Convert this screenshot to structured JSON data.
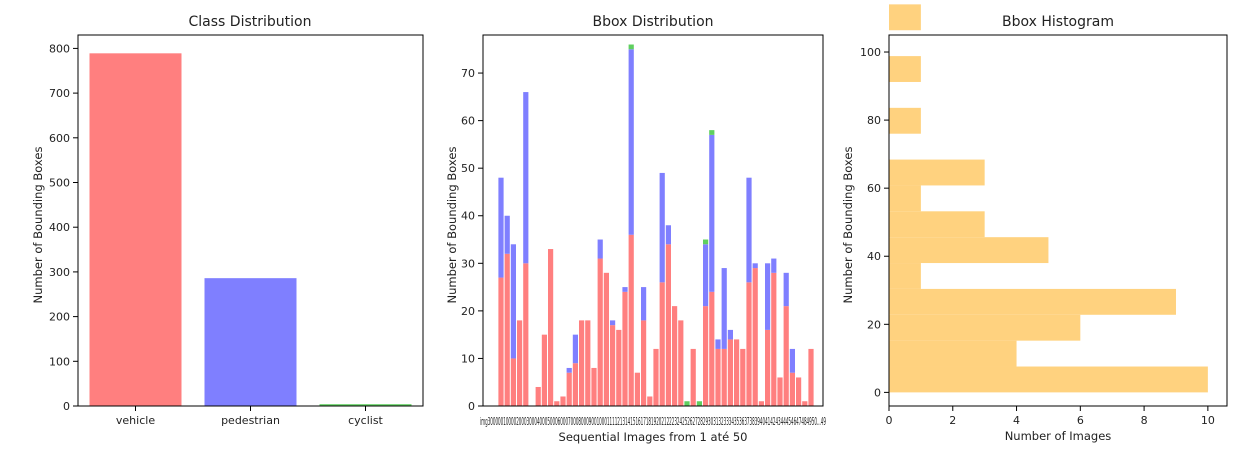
{
  "chart_data": [
    {
      "type": "bar",
      "title": "Class Distribution",
      "xlabel": "",
      "ylabel": "Number of Bounding Boxes",
      "categories": [
        "vehicle",
        "pedestrian",
        "cyclist"
      ],
      "values": [
        789,
        286,
        4
      ],
      "colors": [
        "#ff7f7f",
        "#7f7fff",
        "#5fcf5f"
      ],
      "ylim": [
        0,
        830
      ],
      "yticks": [
        "0",
        "100",
        "200",
        "300",
        "400",
        "500",
        "600",
        "700",
        "800"
      ],
      "grid": false
    },
    {
      "type": "bar",
      "stacked": true,
      "title": "Bbox Distribution",
      "xlabel": "Sequential Images from 1 até 50",
      "ylabel": "Number of Bounding Boxes",
      "ylim": [
        0,
        78
      ],
      "yticks": [
        "0",
        "10",
        "20",
        "30",
        "40",
        "50",
        "60",
        "70"
      ],
      "xtick_text": "img3000001000020003000400050006000700080009001000111121314151617181920212223242526272829303132333435363738394041424344454647484950...49",
      "colors": {
        "vehicle": "#ff7f7f",
        "pedestrian": "#7f7fff",
        "cyclist": "#5fcf5f"
      },
      "series": [
        {
          "values": [
            27,
            32,
            10,
            18,
            30,
            0,
            4,
            15,
            33,
            1,
            2,
            7,
            9,
            18,
            18,
            8,
            31,
            28,
            17,
            16,
            24,
            36,
            7,
            18,
            2,
            12,
            26,
            34,
            21,
            18,
            0,
            12,
            0,
            21,
            24,
            12,
            12,
            14,
            14,
            12,
            26,
            29,
            1,
            16,
            28,
            6,
            21,
            7,
            6,
            1,
            12
          ]
        },
        {
          "values": [
            21,
            8,
            24,
            0,
            36,
            0,
            0,
            0,
            0,
            0,
            0,
            1,
            6,
            0,
            0,
            0,
            4,
            0,
            1,
            0,
            1,
            39,
            0,
            7,
            0,
            0,
            23,
            4,
            0,
            0,
            0,
            0,
            0,
            13,
            33,
            2,
            17,
            2,
            0,
            0,
            22,
            1,
            0,
            14,
            3,
            0,
            7,
            5,
            0,
            0,
            0
          ]
        },
        {
          "values": [
            0,
            0,
            0,
            0,
            0,
            0,
            0,
            0,
            0,
            0,
            0,
            0,
            0,
            0,
            0,
            0,
            0,
            0,
            0,
            0,
            0,
            1,
            0,
            0,
            0,
            0,
            0,
            0,
            0,
            0,
            1,
            0,
            1,
            1,
            1,
            0,
            0,
            0,
            0,
            0,
            0,
            0,
            0,
            0,
            0,
            0,
            0,
            0,
            0,
            0,
            0
          ]
        }
      ],
      "grid": false
    },
    {
      "type": "bar",
      "orientation": "horizontal",
      "title": "Bbox Histogram",
      "xlabel": "Number of Images",
      "ylabel": "Number of Bounding Boxes",
      "xlim": [
        0,
        10.6
      ],
      "ylim": [
        -4,
        105
      ],
      "xticks": [
        "0",
        "2",
        "4",
        "6",
        "8",
        "10"
      ],
      "yticks": [
        "0",
        "20",
        "40",
        "60",
        "80",
        "100"
      ],
      "bins": [
        {
          "from": 0,
          "to": 7.6,
          "count": 10
        },
        {
          "from": 7.6,
          "to": 15.2,
          "count": 4
        },
        {
          "from": 15.2,
          "to": 22.8,
          "count": 6
        },
        {
          "from": 22.8,
          "to": 30.4,
          "count": 9
        },
        {
          "from": 30.4,
          "to": 38.0,
          "count": 1
        },
        {
          "from": 38.0,
          "to": 45.6,
          "count": 5
        },
        {
          "from": 45.6,
          "to": 53.2,
          "count": 3
        },
        {
          "from": 53.2,
          "to": 60.8,
          "count": 1
        },
        {
          "from": 60.8,
          "to": 68.4,
          "count": 3
        },
        {
          "from": 68.4,
          "to": 76.0,
          "count": 0
        },
        {
          "from": 76.0,
          "to": 83.6,
          "count": 1
        },
        {
          "from": 83.6,
          "to": 91.2,
          "count": 0
        },
        {
          "from": 91.2,
          "to": 98.8,
          "count": 1
        },
        {
          "from": 98.8,
          "to": 106.4,
          "count": 0
        },
        {
          "from": 106.4,
          "to": 114.0,
          "count": 1
        }
      ],
      "color": "#ffd27f",
      "grid": false
    }
  ]
}
